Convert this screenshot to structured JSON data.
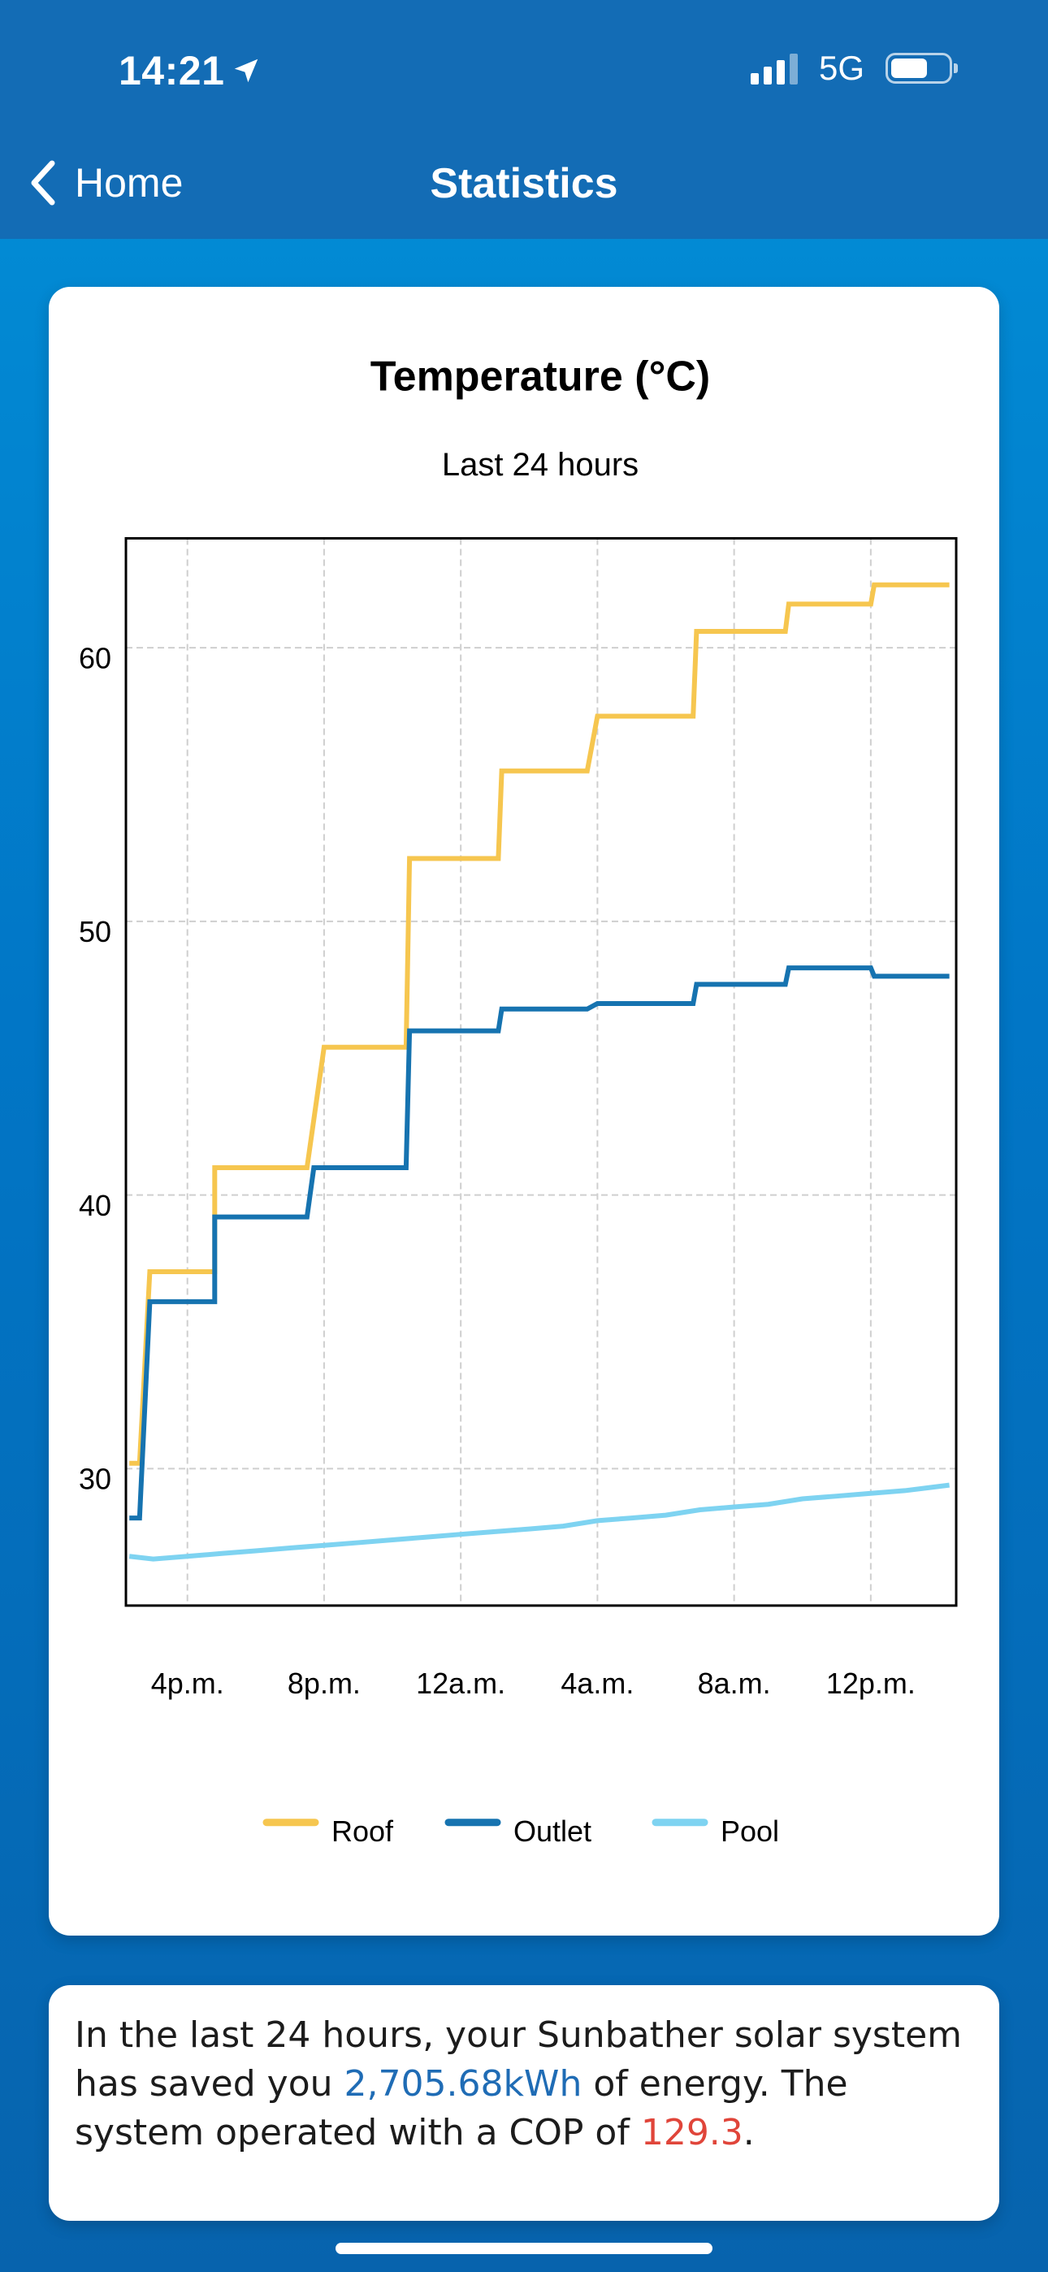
{
  "status_bar": {
    "time": "14:21",
    "network": "5G"
  },
  "nav": {
    "back_label": "Home",
    "title": "Statistics"
  },
  "chart_data": {
    "type": "line",
    "title": "Temperature (°C)",
    "subtitle": "Last 24 hours",
    "xlabel": "",
    "ylabel": "",
    "x_ticks": [
      "4p.m.",
      "8p.m.",
      "12a.m.",
      "4a.m.",
      "8a.m.",
      "12p.m."
    ],
    "x_tick_hours": [
      16,
      20,
      24,
      28,
      32,
      36
    ],
    "xlim": [
      14.2,
      38.5
    ],
    "ylim": [
      25,
      64
    ],
    "y_ticks": [
      30,
      40,
      50,
      60
    ],
    "grid": true,
    "legend_position": "bottom",
    "series": [
      {
        "name": "Roof",
        "color": "#f6c64f",
        "points": [
          [
            14.3,
            30.2
          ],
          [
            14.6,
            30.2
          ],
          [
            14.9,
            37.2
          ],
          [
            16.8,
            37.2
          ],
          [
            16.8,
            41.0
          ],
          [
            19.5,
            41.0
          ],
          [
            20.0,
            45.4
          ],
          [
            22.4,
            45.4
          ],
          [
            22.5,
            52.3
          ],
          [
            25.1,
            52.3
          ],
          [
            25.2,
            55.5
          ],
          [
            27.7,
            55.5
          ],
          [
            28.0,
            57.5
          ],
          [
            30.8,
            57.5
          ],
          [
            30.9,
            60.6
          ],
          [
            33.5,
            60.6
          ],
          [
            33.6,
            61.6
          ],
          [
            36.0,
            61.6
          ],
          [
            36.1,
            62.3
          ],
          [
            38.3,
            62.3
          ]
        ]
      },
      {
        "name": "Outlet",
        "color": "#1673b0",
        "points": [
          [
            14.3,
            28.2
          ],
          [
            14.6,
            28.2
          ],
          [
            14.9,
            36.1
          ],
          [
            16.8,
            36.1
          ],
          [
            16.8,
            39.2
          ],
          [
            19.5,
            39.2
          ],
          [
            19.7,
            41.0
          ],
          [
            22.4,
            41.0
          ],
          [
            22.5,
            46.0
          ],
          [
            25.1,
            46.0
          ],
          [
            25.2,
            46.8
          ],
          [
            27.7,
            46.8
          ],
          [
            28.0,
            47.0
          ],
          [
            30.8,
            47.0
          ],
          [
            30.9,
            47.7
          ],
          [
            33.5,
            47.7
          ],
          [
            33.6,
            48.3
          ],
          [
            36.0,
            48.3
          ],
          [
            36.1,
            48.0
          ],
          [
            38.3,
            48.0
          ]
        ]
      },
      {
        "name": "Pool",
        "color": "#7ed3f1",
        "points": [
          [
            14.3,
            26.8
          ],
          [
            15.0,
            26.7
          ],
          [
            16.0,
            26.8
          ],
          [
            17.0,
            26.9
          ],
          [
            18.0,
            27.0
          ],
          [
            19.0,
            27.1
          ],
          [
            20.0,
            27.2
          ],
          [
            21.0,
            27.3
          ],
          [
            22.0,
            27.4
          ],
          [
            23.0,
            27.5
          ],
          [
            24.0,
            27.6
          ],
          [
            25.0,
            27.7
          ],
          [
            26.0,
            27.8
          ],
          [
            27.0,
            27.9
          ],
          [
            28.0,
            28.1
          ],
          [
            29.0,
            28.2
          ],
          [
            30.0,
            28.3
          ],
          [
            31.0,
            28.5
          ],
          [
            32.0,
            28.6
          ],
          [
            33.0,
            28.7
          ],
          [
            34.0,
            28.9
          ],
          [
            35.0,
            29.0
          ],
          [
            36.0,
            29.1
          ],
          [
            37.0,
            29.2
          ],
          [
            38.3,
            29.4
          ]
        ]
      }
    ]
  },
  "summary": {
    "text_before": "In the last 24 hours, your Sunbather solar system has saved you ",
    "energy": "2,705.68kWh",
    "text_middle": " of energy. The system operated with a COP of ",
    "cop": "129.3",
    "text_after": "."
  }
}
